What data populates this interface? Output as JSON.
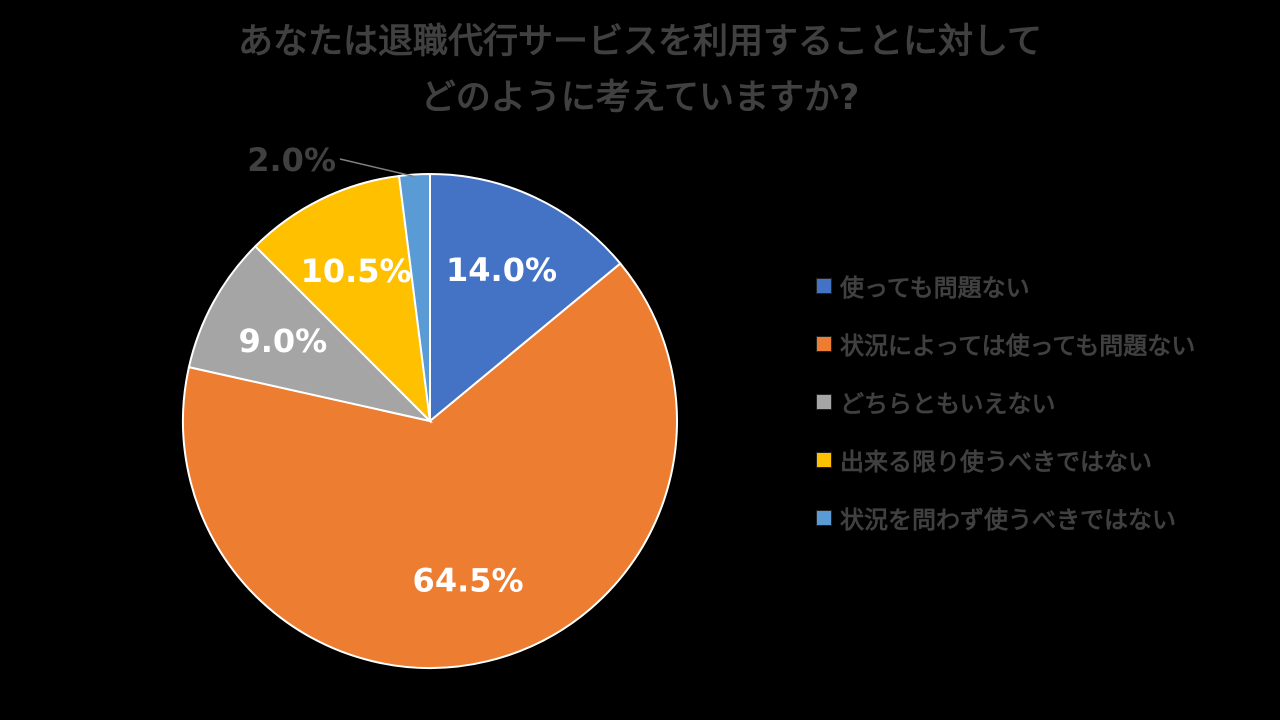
{
  "chart_data": {
    "type": "pie",
    "title_lines": [
      "あなたは退職代行サービスを利用することに対して",
      "どのように考えていますか?"
    ],
    "slices": [
      {
        "label": "使っても問題ない",
        "value": 14.0,
        "display": "14.0%",
        "color": "#4472C4",
        "label_color": "#FFFFFF"
      },
      {
        "label": "状況によっては使っても問題ない",
        "value": 64.5,
        "display": "64.5%",
        "color": "#ED7D31",
        "label_color": "#FFFFFF"
      },
      {
        "label": "どちらともいえない",
        "value": 9.0,
        "display": "9.0%",
        "color": "#A5A5A5",
        "label_color": "#FFFFFF"
      },
      {
        "label": "出来る限り使うべきではない",
        "value": 10.5,
        "display": "10.5%",
        "color": "#FFC000",
        "label_color": "#FFFFFF"
      },
      {
        "label": "状況を問わず使うべきではない",
        "value": 2.0,
        "display": "2.0%",
        "color": "#5B9BD5",
        "label_color": "#404040"
      }
    ],
    "legend_position": "right"
  }
}
